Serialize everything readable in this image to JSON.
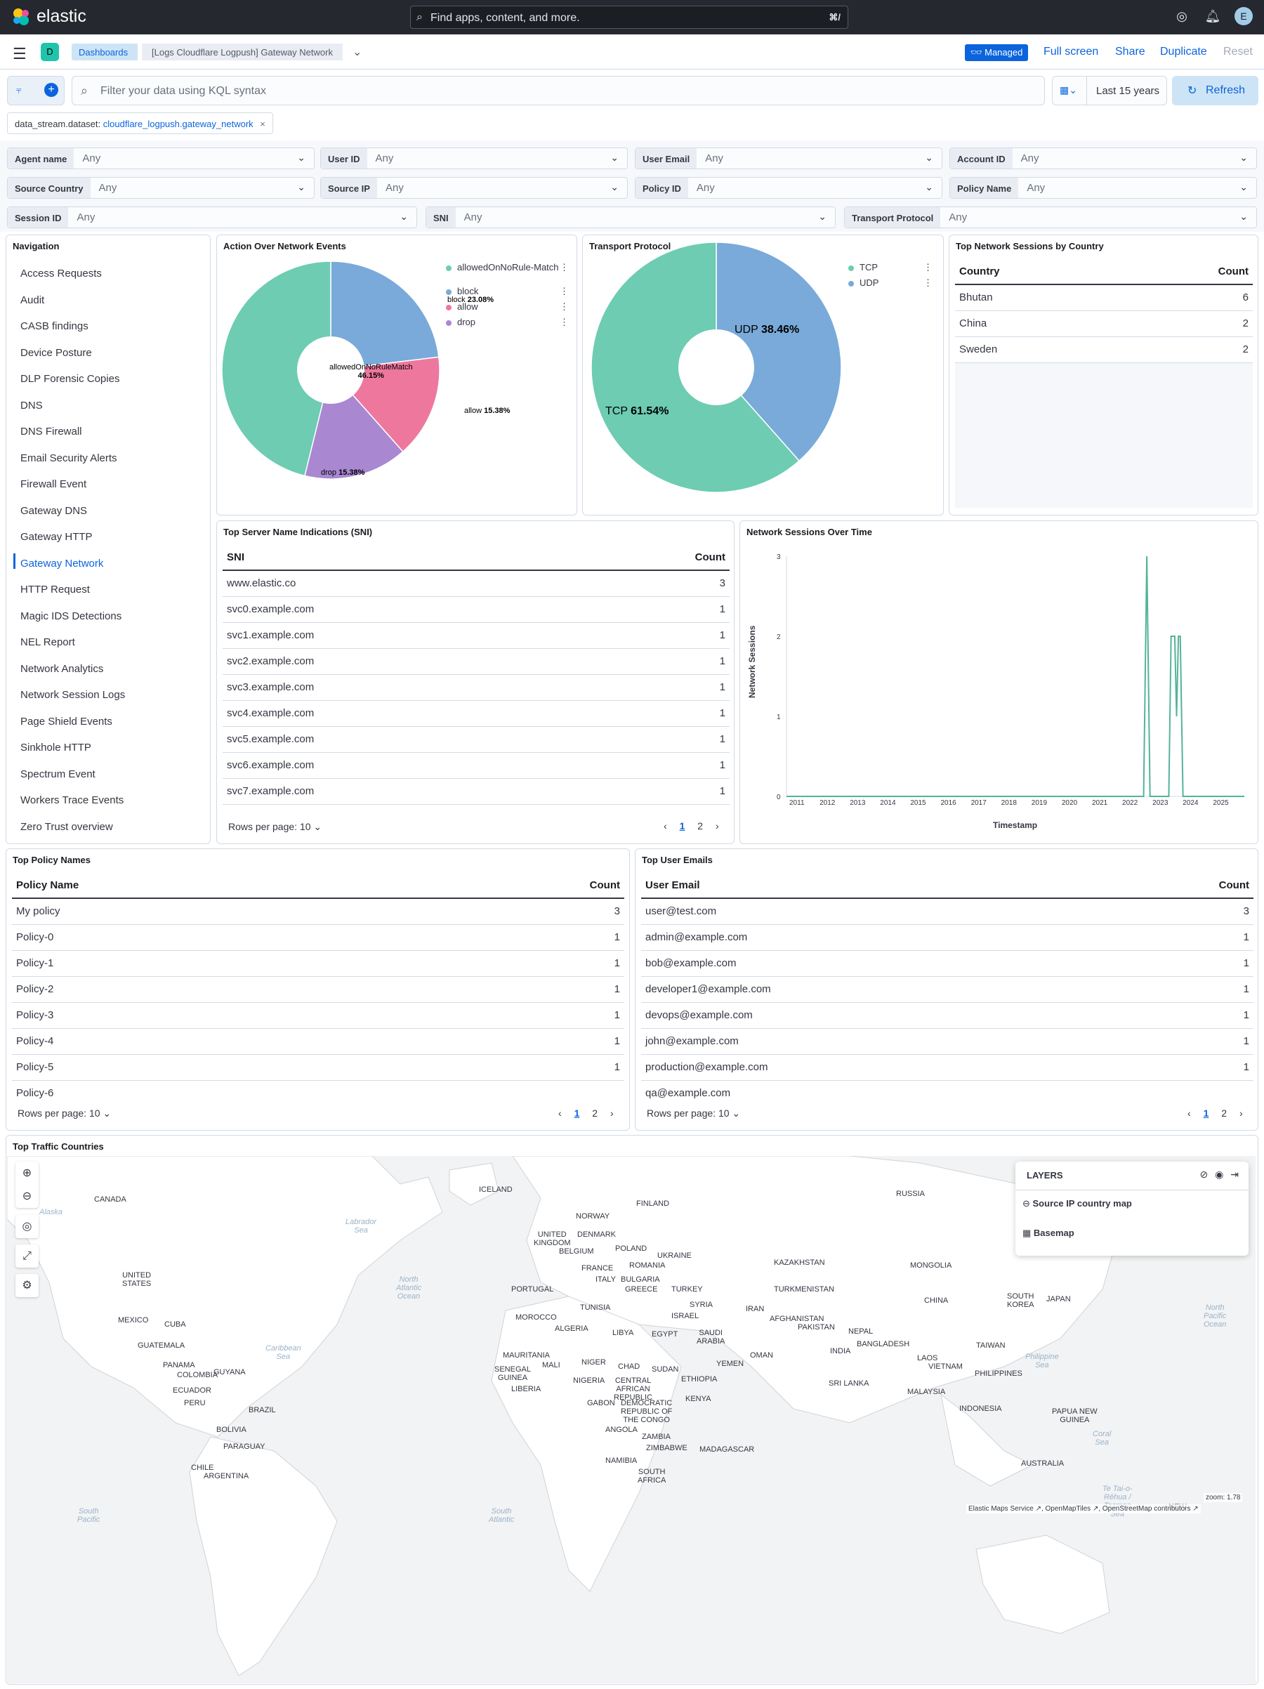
{
  "app": {
    "name": "elastic",
    "search_placeholder": "Find apps, content, and more.",
    "search_kbd": "⌘/",
    "avatar": "E"
  },
  "breadcrumbs": {
    "dashboards": "Dashboards",
    "current": "[Logs Cloudflare Logpush] Gateway Network"
  },
  "actions": {
    "managed": "Managed",
    "full_screen": "Full screen",
    "share": "Share",
    "duplicate": "Duplicate",
    "reset": "Reset"
  },
  "query": {
    "placeholder": "Filter your data using KQL syntax",
    "time_range": "Last 15 years",
    "refresh": "Refresh"
  },
  "filter_pill": {
    "key": "data_stream.dataset: ",
    "value": "cloudflare_logpush.gateway_network"
  },
  "controls": [
    {
      "label": "Agent name",
      "value": "Any"
    },
    {
      "label": "User ID",
      "value": "Any"
    },
    {
      "label": "User Email",
      "value": "Any"
    },
    {
      "label": "Account ID",
      "value": "Any"
    },
    {
      "label": "Source Country",
      "value": "Any"
    },
    {
      "label": "Source IP",
      "value": "Any"
    },
    {
      "label": "Policy ID",
      "value": "Any"
    },
    {
      "label": "Policy Name",
      "value": "Any"
    },
    {
      "label": "Session ID",
      "value": "Any"
    },
    {
      "label": "SNI",
      "value": "Any"
    },
    {
      "label": "Transport Protocol",
      "value": "Any"
    }
  ],
  "navigation": {
    "title": "Navigation",
    "items": [
      "Access Requests",
      "Audit",
      "CASB findings",
      "Device Posture",
      "DLP Forensic Copies",
      "DNS",
      "DNS Firewall",
      "Email Security Alerts",
      "Firewall Event",
      "Gateway DNS",
      "Gateway HTTP",
      "Gateway Network",
      "HTTP Request",
      "Magic IDS Detections",
      "NEL Report",
      "Network Analytics",
      "Network Session Logs",
      "Page Shield Events",
      "Sinkhole HTTP",
      "Spectrum Event",
      "Workers Trace Events",
      "Zero Trust overview"
    ],
    "active": "Gateway Network"
  },
  "action_chart": {
    "title": "Action Over Network Events",
    "legend": [
      "allowedOnNoRule-Match",
      "block",
      "allow",
      "drop"
    ],
    "labels": {
      "a": "allowedOnNoRuleMatch",
      "a_pct": "46.15%",
      "b": "block",
      "b_pct": "23.08%",
      "c": "allow",
      "c_pct": "15.38%",
      "d": "drop",
      "d_pct": "15.38%"
    }
  },
  "transport_chart": {
    "title": "Transport Protocol",
    "legend": [
      "TCP",
      "UDP"
    ],
    "labels": {
      "tcp": "TCP",
      "tcp_pct": "61.54%",
      "udp": "UDP",
      "udp_pct": "38.46%"
    }
  },
  "country_table": {
    "title": "Top Network Sessions by Country",
    "col1": "Country",
    "col2": "Count",
    "rows": [
      [
        "Bhutan",
        "6"
      ],
      [
        "China",
        "2"
      ],
      [
        "Sweden",
        "2"
      ]
    ]
  },
  "sni_table": {
    "title": "Top Server Name Indications (SNI)",
    "col1": "SNI",
    "col2": "Count",
    "rows": [
      [
        "www.elastic.co",
        "3"
      ],
      [
        "svc0.example.com",
        "1"
      ],
      [
        "svc1.example.com",
        "1"
      ],
      [
        "svc2.example.com",
        "1"
      ],
      [
        "svc3.example.com",
        "1"
      ],
      [
        "svc4.example.com",
        "1"
      ],
      [
        "svc5.example.com",
        "1"
      ],
      [
        "svc6.example.com",
        "1"
      ],
      [
        "svc7.example.com",
        "1"
      ]
    ],
    "rows_per_page": "Rows per page: 10",
    "page1": "1",
    "page2": "2"
  },
  "sessions_chart": {
    "title": "Network Sessions Over Time",
    "ylabel": "Network Sessions",
    "xlabel": "Timestamp"
  },
  "policy_table": {
    "title": "Top Policy Names",
    "col1": "Policy Name",
    "col2": "Count",
    "rows": [
      [
        "My policy",
        "3"
      ],
      [
        "Policy-0",
        "1"
      ],
      [
        "Policy-1",
        "1"
      ],
      [
        "Policy-2",
        "1"
      ],
      [
        "Policy-3",
        "1"
      ],
      [
        "Policy-4",
        "1"
      ],
      [
        "Policy-5",
        "1"
      ]
    ],
    "cutoff": "Policy-6",
    "rows_per_page": "Rows per page: 10",
    "page1": "1",
    "page2": "2"
  },
  "email_table": {
    "title": "Top User Emails",
    "col1": "User Email",
    "col2": "Count",
    "rows": [
      [
        "user@test.com",
        "3"
      ],
      [
        "admin@example.com",
        "1"
      ],
      [
        "bob@example.com",
        "1"
      ],
      [
        "developer1@example.com",
        "1"
      ],
      [
        "devops@example.com",
        "1"
      ],
      [
        "john@example.com",
        "1"
      ],
      [
        "production@example.com",
        "1"
      ]
    ],
    "cutoff": "qa@example.com",
    "rows_per_page": "Rows per page: 10",
    "page1": "1",
    "page2": "2"
  },
  "map": {
    "title": "Top Traffic Countries",
    "layers_title": "LAYERS",
    "layer1": "Source IP country map",
    "layer2": "Basemap",
    "zoom": "zoom: 1.78",
    "attribution": "Elastic Maps Service ↗, OpenMapTiles ↗, OpenStreetMap contributors ↗"
  },
  "chart_data": [
    {
      "type": "pie",
      "title": "Action Over Network Events",
      "categories": [
        "allowedOnNoRuleMatch",
        "block",
        "allow",
        "drop"
      ],
      "values": [
        46.15,
        23.08,
        15.38,
        15.38
      ],
      "colors": [
        "#6dccb1",
        "#79aad9",
        "#ee789d",
        "#a987d1"
      ]
    },
    {
      "type": "pie",
      "title": "Transport Protocol",
      "categories": [
        "TCP",
        "UDP"
      ],
      "values": [
        61.54,
        38.46
      ],
      "colors": [
        "#6dccb1",
        "#79aad9"
      ]
    },
    {
      "type": "line",
      "title": "Network Sessions Over Time",
      "xlabel": "Timestamp",
      "ylabel": "Network Sessions",
      "xticks": [
        "2011",
        "2012",
        "2013",
        "2014",
        "2015",
        "2016",
        "2017",
        "2018",
        "2019",
        "2020",
        "2021",
        "2022",
        "2023",
        "2024",
        "2025"
      ],
      "yticks": [
        "0",
        "1",
        "2",
        "3"
      ],
      "ylim": [
        0,
        3
      ],
      "series": [
        {
          "values": [
            0,
            0,
            0,
            0,
            0,
            0,
            0,
            0,
            0,
            0,
            0,
            0,
            3,
            2,
            1,
            2,
            0,
            0
          ]
        }
      ],
      "color": "#54b399"
    }
  ]
}
